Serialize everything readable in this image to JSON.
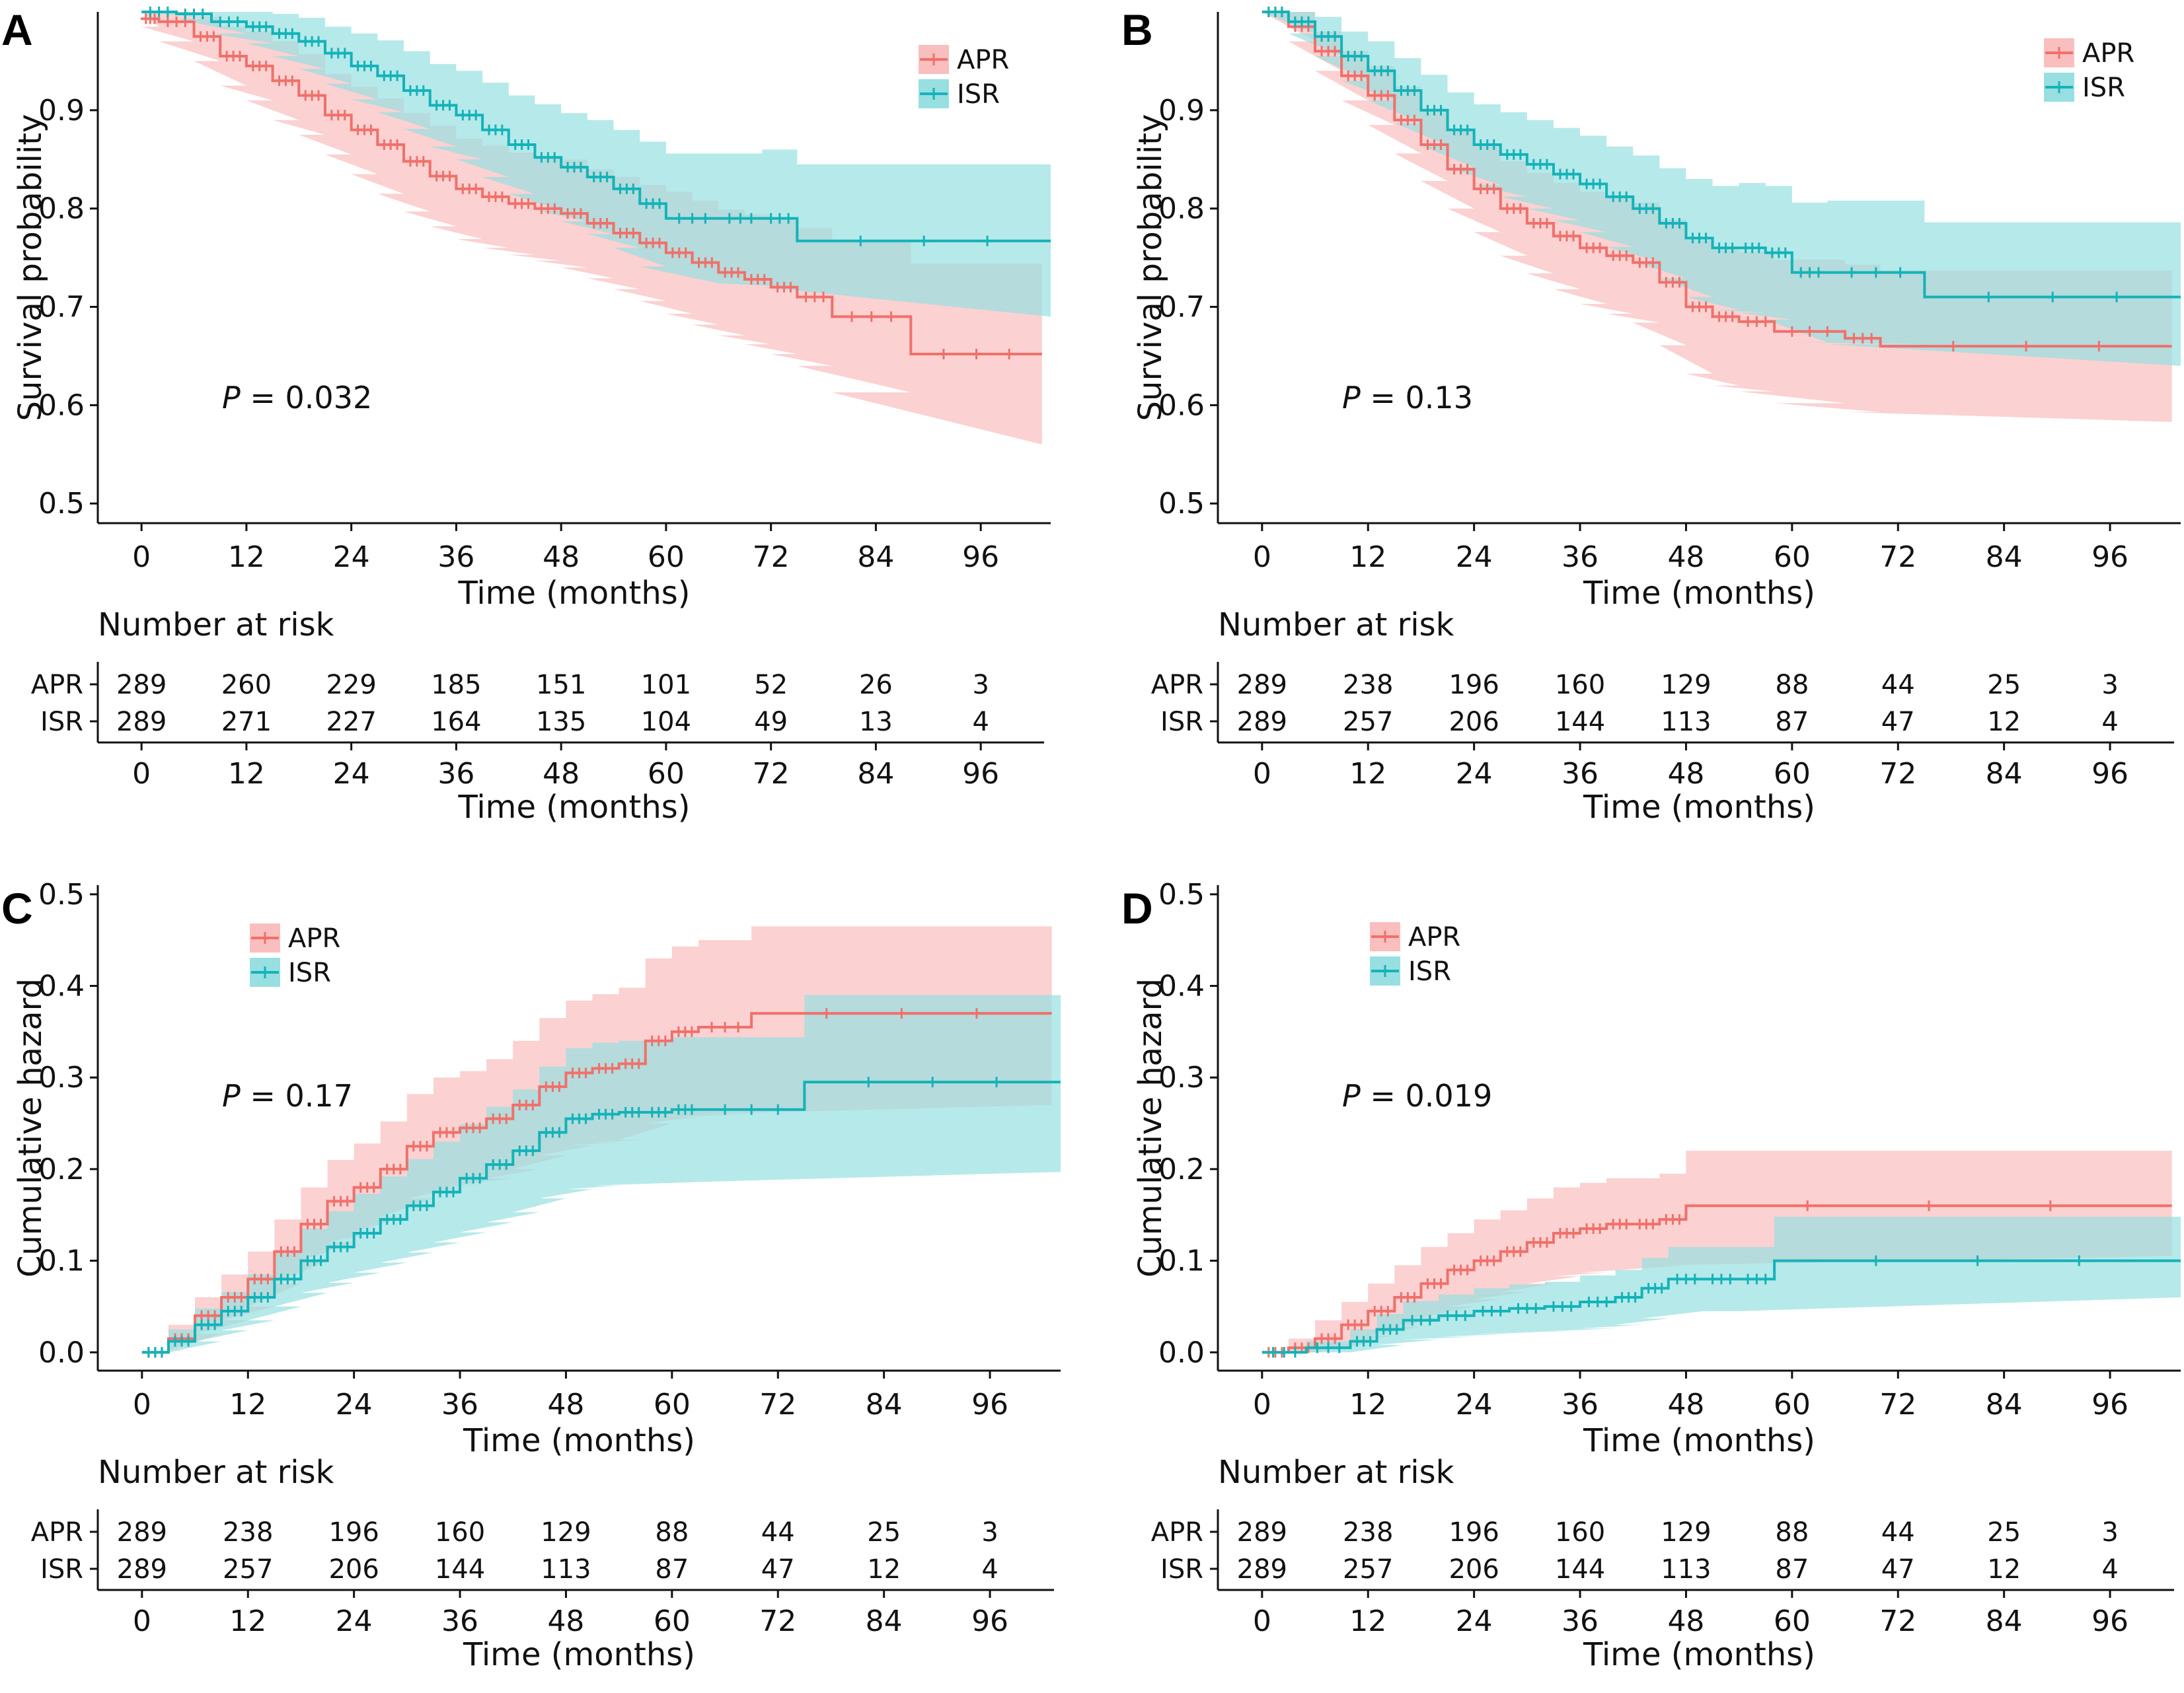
{
  "colors": {
    "APR": "#F0706A",
    "ISR": "#13B3B8",
    "APR_band": "#F9BEBE",
    "ISR_band": "#97DFE1"
  },
  "risk_table": {
    "title": "Number at risk",
    "xlabel": "Time (months)"
  },
  "chart_data": [
    {
      "panel": "A",
      "type": "line",
      "step": true,
      "ylabel": "Survival probability",
      "xlabel": "Time (months)",
      "xlim": [
        -5,
        104
      ],
      "ylim": [
        0.48,
        1.0
      ],
      "xticks": [
        0,
        12,
        24,
        36,
        48,
        60,
        72,
        84,
        96
      ],
      "yticks": [
        0.5,
        0.6,
        0.7,
        0.8,
        0.9
      ],
      "ytick_labels": [
        "0.5",
        "0.6",
        "0.7",
        "0.8",
        "0.9"
      ],
      "legend_position": "top-right",
      "pvalue": "= 0.032",
      "series": [
        {
          "name": "APR",
          "x": [
            0,
            2,
            6,
            9,
            12,
            15,
            18,
            21,
            24,
            27,
            30,
            33,
            36,
            39,
            42,
            45,
            48,
            51,
            54,
            57,
            60,
            63,
            66,
            69,
            72,
            75,
            79,
            88,
            103
          ],
          "y": [
            0.993,
            0.99,
            0.975,
            0.955,
            0.945,
            0.93,
            0.915,
            0.895,
            0.88,
            0.865,
            0.848,
            0.833,
            0.82,
            0.812,
            0.805,
            0.8,
            0.795,
            0.785,
            0.775,
            0.765,
            0.755,
            0.745,
            0.735,
            0.728,
            0.72,
            0.71,
            0.69,
            0.652,
            0.652
          ],
          "lower": [
            0.985,
            0.97,
            0.95,
            0.925,
            0.91,
            0.89,
            0.875,
            0.855,
            0.835,
            0.815,
            0.797,
            0.782,
            0.769,
            0.76,
            0.753,
            0.747,
            0.74,
            0.729,
            0.718,
            0.706,
            0.693,
            0.682,
            0.671,
            0.662,
            0.652,
            0.64,
            0.613,
            0.56,
            0.56
          ],
          "upper": [
            1.0,
            1.0,
            0.995,
            0.985,
            0.98,
            0.97,
            0.957,
            0.937,
            0.924,
            0.912,
            0.897,
            0.884,
            0.871,
            0.864,
            0.857,
            0.853,
            0.85,
            0.84,
            0.832,
            0.824,
            0.817,
            0.808,
            0.799,
            0.794,
            0.788,
            0.78,
            0.767,
            0.744,
            0.744
          ]
        },
        {
          "name": "ISR",
          "x": [
            0,
            4,
            8,
            12,
            15,
            18,
            21,
            24,
            27,
            30,
            33,
            36,
            39,
            42,
            45,
            48,
            51,
            54,
            57,
            60,
            66,
            71,
            75,
            104
          ],
          "y": [
            1.0,
            0.998,
            0.99,
            0.985,
            0.978,
            0.97,
            0.958,
            0.945,
            0.935,
            0.92,
            0.905,
            0.895,
            0.88,
            0.865,
            0.852,
            0.842,
            0.832,
            0.82,
            0.805,
            0.79,
            0.79,
            0.79,
            0.767,
            0.767
          ],
          "lower": [
            1.0,
            0.993,
            0.978,
            0.968,
            0.955,
            0.942,
            0.927,
            0.911,
            0.898,
            0.881,
            0.863,
            0.85,
            0.832,
            0.815,
            0.798,
            0.787,
            0.774,
            0.76,
            0.741,
            0.724,
            0.724,
            0.72,
            0.69,
            0.69
          ],
          "upper": [
            1.0,
            1.0,
            1.0,
            1.0,
            0.998,
            0.994,
            0.985,
            0.978,
            0.971,
            0.96,
            0.947,
            0.94,
            0.928,
            0.915,
            0.906,
            0.897,
            0.89,
            0.88,
            0.868,
            0.856,
            0.856,
            0.86,
            0.845,
            0.845
          ]
        }
      ],
      "risk_table": {
        "APR": [
          "289",
          "260",
          "229",
          "185",
          "151",
          "101",
          "52",
          "26",
          "3"
        ],
        "ISR": [
          "289",
          "271",
          "227",
          "164",
          "135",
          "104",
          "49",
          "13",
          "4"
        ]
      }
    },
    {
      "panel": "B",
      "type": "line",
      "step": true,
      "ylabel": "Survival probability",
      "xlabel": "Time (months)",
      "xlim": [
        -5,
        104
      ],
      "ylim": [
        0.48,
        1.0
      ],
      "xticks": [
        0,
        12,
        24,
        36,
        48,
        60,
        72,
        84,
        96
      ],
      "yticks": [
        0.5,
        0.6,
        0.7,
        0.8,
        0.9
      ],
      "ytick_labels": [
        "0.5",
        "0.6",
        "0.7",
        "0.8",
        "0.9"
      ],
      "legend_position": "top-right",
      "pvalue": "= 0.13",
      "series": [
        {
          "name": "APR",
          "x": [
            0,
            3,
            6,
            9,
            12,
            15,
            18,
            21,
            24,
            27,
            30,
            33,
            36,
            39,
            42,
            45,
            48,
            51,
            54,
            58,
            66,
            70,
            103
          ],
          "y": [
            1.0,
            0.985,
            0.96,
            0.935,
            0.915,
            0.89,
            0.865,
            0.84,
            0.82,
            0.8,
            0.785,
            0.772,
            0.76,
            0.752,
            0.745,
            0.725,
            0.7,
            0.69,
            0.685,
            0.675,
            0.668,
            0.66,
            0.66
          ],
          "lower": [
            1.0,
            0.97,
            0.94,
            0.91,
            0.885,
            0.856,
            0.828,
            0.8,
            0.776,
            0.752,
            0.734,
            0.718,
            0.703,
            0.693,
            0.684,
            0.661,
            0.632,
            0.62,
            0.614,
            0.602,
            0.593,
            0.583,
            0.583
          ],
          "upper": [
            1.0,
            1.0,
            0.98,
            0.96,
            0.945,
            0.924,
            0.902,
            0.88,
            0.864,
            0.848,
            0.836,
            0.826,
            0.817,
            0.811,
            0.806,
            0.789,
            0.768,
            0.76,
            0.756,
            0.748,
            0.743,
            0.737,
            0.737
          ]
        },
        {
          "name": "ISR",
          "x": [
            0,
            3,
            6,
            9,
            12,
            15,
            18,
            21,
            24,
            27,
            30,
            33,
            36,
            39,
            42,
            45,
            48,
            51,
            54,
            57,
            60,
            64,
            75,
            104
          ],
          "y": [
            1.0,
            0.99,
            0.975,
            0.955,
            0.94,
            0.92,
            0.9,
            0.88,
            0.865,
            0.855,
            0.845,
            0.835,
            0.825,
            0.812,
            0.8,
            0.785,
            0.77,
            0.76,
            0.76,
            0.755,
            0.735,
            0.735,
            0.71,
            0.71
          ],
          "lower": [
            1.0,
            0.978,
            0.955,
            0.93,
            0.91,
            0.887,
            0.864,
            0.842,
            0.824,
            0.812,
            0.8,
            0.788,
            0.776,
            0.761,
            0.746,
            0.729,
            0.71,
            0.697,
            0.694,
            0.687,
            0.664,
            0.662,
            0.64,
            0.64
          ],
          "upper": [
            1.0,
            1.0,
            0.995,
            0.98,
            0.97,
            0.953,
            0.936,
            0.918,
            0.906,
            0.898,
            0.89,
            0.882,
            0.874,
            0.863,
            0.854,
            0.841,
            0.83,
            0.823,
            0.826,
            0.823,
            0.806,
            0.808,
            0.786,
            0.786
          ]
        }
      ],
      "risk_table": {
        "APR": [
          "289",
          "238",
          "196",
          "160",
          "129",
          "88",
          "44",
          "25",
          "3"
        ],
        "ISR": [
          "289",
          "257",
          "206",
          "144",
          "113",
          "87",
          "47",
          "12",
          "4"
        ]
      }
    },
    {
      "panel": "C",
      "type": "line",
      "step": true,
      "ylabel": "Cumulative hazard",
      "xlabel": "Time (months)",
      "xlim": [
        -5,
        104
      ],
      "ylim": [
        -0.02,
        0.51
      ],
      "xticks": [
        0,
        12,
        24,
        36,
        48,
        60,
        72,
        84,
        96
      ],
      "yticks": [
        0.0,
        0.1,
        0.2,
        0.3,
        0.4,
        0.5
      ],
      "ytick_labels": [
        "0.0",
        "0.1",
        "0.2",
        "0.3",
        "0.4",
        "0.5"
      ],
      "legend_position": "top-left",
      "pvalue": "= 0.17",
      "series": [
        {
          "name": "APR",
          "x": [
            0,
            3,
            6,
            9,
            12,
            15,
            18,
            21,
            24,
            27,
            30,
            33,
            36,
            39,
            42,
            45,
            48,
            51,
            54,
            57,
            60,
            63,
            69,
            103
          ],
          "y": [
            0.0,
            0.015,
            0.04,
            0.06,
            0.08,
            0.11,
            0.14,
            0.165,
            0.18,
            0.2,
            0.225,
            0.24,
            0.245,
            0.255,
            0.27,
            0.29,
            0.305,
            0.31,
            0.315,
            0.34,
            0.35,
            0.355,
            0.37,
            0.37
          ],
          "lower": [
            0.0,
            0.002,
            0.02,
            0.035,
            0.05,
            0.075,
            0.1,
            0.12,
            0.132,
            0.148,
            0.168,
            0.18,
            0.183,
            0.19,
            0.2,
            0.215,
            0.226,
            0.229,
            0.232,
            0.25,
            0.257,
            0.26,
            0.27,
            0.27
          ],
          "upper": [
            0.0,
            0.03,
            0.06,
            0.085,
            0.11,
            0.145,
            0.18,
            0.21,
            0.228,
            0.252,
            0.282,
            0.3,
            0.307,
            0.32,
            0.34,
            0.365,
            0.384,
            0.391,
            0.398,
            0.43,
            0.443,
            0.45,
            0.465,
            0.465
          ]
        },
        {
          "name": "ISR",
          "x": [
            0,
            3,
            6,
            9,
            12,
            15,
            18,
            21,
            24,
            27,
            30,
            33,
            36,
            39,
            42,
            45,
            48,
            51,
            54,
            57,
            60,
            63,
            75,
            104
          ],
          "y": [
            0.0,
            0.012,
            0.03,
            0.045,
            0.06,
            0.08,
            0.1,
            0.115,
            0.13,
            0.145,
            0.16,
            0.175,
            0.19,
            0.205,
            0.22,
            0.24,
            0.255,
            0.26,
            0.262,
            0.262,
            0.265,
            0.265,
            0.295,
            0.295
          ],
          "lower": [
            0.0,
            0.0,
            0.012,
            0.024,
            0.035,
            0.05,
            0.065,
            0.076,
            0.087,
            0.098,
            0.109,
            0.12,
            0.131,
            0.142,
            0.153,
            0.168,
            0.178,
            0.182,
            0.184,
            0.184,
            0.186,
            0.186,
            0.197,
            0.197
          ],
          "upper": [
            0.0,
            0.025,
            0.048,
            0.066,
            0.085,
            0.11,
            0.135,
            0.154,
            0.173,
            0.192,
            0.211,
            0.23,
            0.249,
            0.268,
            0.287,
            0.312,
            0.332,
            0.338,
            0.34,
            0.34,
            0.344,
            0.344,
            0.39,
            0.39
          ]
        }
      ],
      "risk_table": {
        "APR": [
          "289",
          "238",
          "196",
          "160",
          "129",
          "88",
          "44",
          "25",
          "3"
        ],
        "ISR": [
          "289",
          "257",
          "206",
          "144",
          "113",
          "87",
          "47",
          "12",
          "4"
        ]
      }
    },
    {
      "panel": "D",
      "type": "line",
      "step": true,
      "ylabel": "Cumulative hazard",
      "xlabel": "Time (months)",
      "xlim": [
        -5,
        104
      ],
      "ylim": [
        -0.02,
        0.51
      ],
      "xticks": [
        0,
        12,
        24,
        36,
        48,
        60,
        72,
        84,
        96
      ],
      "yticks": [
        0.0,
        0.1,
        0.2,
        0.3,
        0.4,
        0.5
      ],
      "ytick_labels": [
        "0.0",
        "0.1",
        "0.2",
        "0.3",
        "0.4",
        "0.5"
      ],
      "legend_position": "top-left",
      "pvalue": "= 0.019",
      "series": [
        {
          "name": "APR",
          "x": [
            0,
            3,
            6,
            9,
            12,
            15,
            18,
            21,
            24,
            27,
            30,
            33,
            36,
            39,
            42,
            45,
            48,
            103
          ],
          "y": [
            0.0,
            0.005,
            0.015,
            0.03,
            0.045,
            0.06,
            0.075,
            0.09,
            0.1,
            0.11,
            0.12,
            0.13,
            0.135,
            0.14,
            0.14,
            0.145,
            0.16,
            0.16
          ],
          "lower": [
            0.0,
            0.0,
            0.0,
            0.01,
            0.018,
            0.028,
            0.038,
            0.05,
            0.058,
            0.066,
            0.075,
            0.083,
            0.087,
            0.091,
            0.091,
            0.095,
            0.105,
            0.105
          ],
          "upper": [
            0.0,
            0.015,
            0.035,
            0.055,
            0.075,
            0.095,
            0.115,
            0.13,
            0.145,
            0.155,
            0.168,
            0.18,
            0.185,
            0.19,
            0.19,
            0.195,
            0.22,
            0.22
          ]
        },
        {
          "name": "ISR",
          "x": [
            0,
            5,
            10,
            13,
            16,
            20,
            24,
            28,
            32,
            36,
            40,
            43,
            46,
            50,
            54,
            58,
            104
          ],
          "y": [
            0.0,
            0.005,
            0.012,
            0.025,
            0.035,
            0.04,
            0.045,
            0.048,
            0.05,
            0.055,
            0.06,
            0.07,
            0.08,
            0.08,
            0.08,
            0.1,
            0.1
          ],
          "lower": [
            0.0,
            0.0,
            0.0,
            0.008,
            0.014,
            0.017,
            0.02,
            0.022,
            0.023,
            0.026,
            0.03,
            0.037,
            0.045,
            0.045,
            0.045,
            0.06,
            0.06
          ],
          "upper": [
            0.0,
            0.012,
            0.025,
            0.042,
            0.056,
            0.063,
            0.07,
            0.074,
            0.077,
            0.084,
            0.09,
            0.103,
            0.115,
            0.115,
            0.115,
            0.148,
            0.148
          ]
        }
      ],
      "risk_table": {
        "APR": [
          "289",
          "238",
          "196",
          "160",
          "129",
          "88",
          "44",
          "25",
          "3"
        ],
        "ISR": [
          "289",
          "257",
          "206",
          "144",
          "113",
          "87",
          "47",
          "12",
          "4"
        ]
      }
    }
  ]
}
